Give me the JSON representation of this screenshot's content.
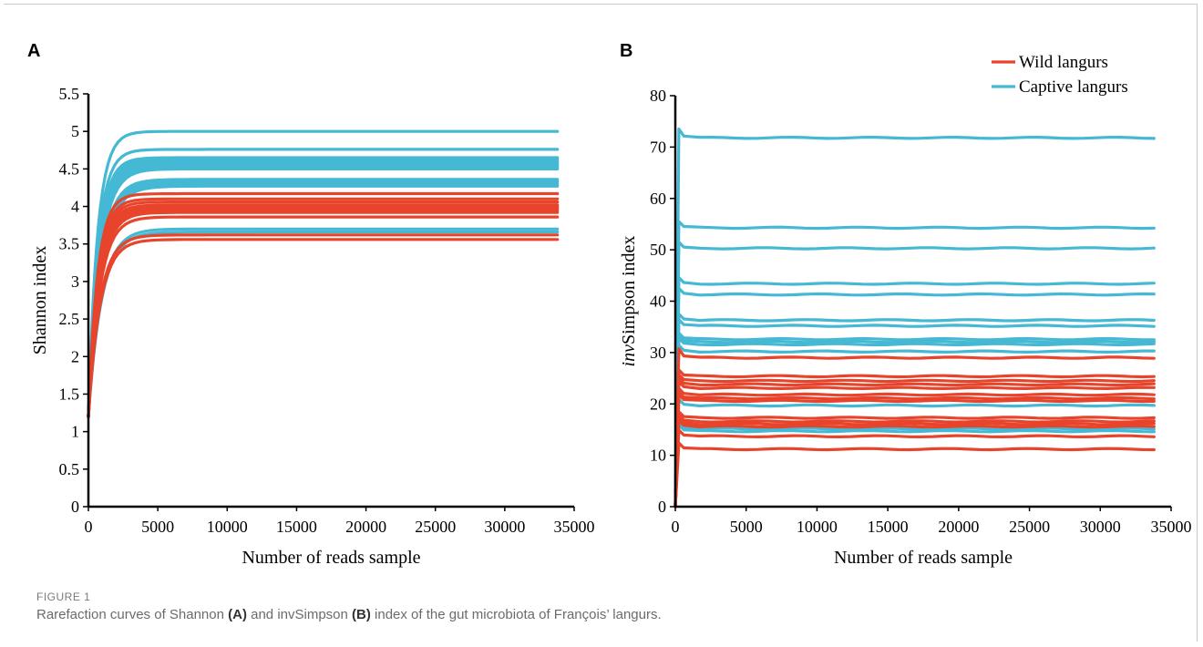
{
  "figure": {
    "label": "FIGURE 1",
    "caption_parts": [
      "Rarefaction curves of Shannon ",
      "(A)",
      " and invSimpson ",
      "(B)",
      " index of the gut microbiota of François’ langurs."
    ]
  },
  "colors": {
    "wild": "#e8442c",
    "captive": "#45b8d4",
    "axis": "#000000"
  },
  "chart_data": [
    {
      "panel": "A",
      "type": "line",
      "xlabel": "Number of reads sample",
      "ylabel": "Shannon index",
      "xlim": [
        0,
        35000
      ],
      "ylim": [
        0,
        5.5
      ],
      "x_ticks": [
        "0",
        "5000",
        "10000",
        "15000",
        "20000",
        "25000",
        "30000",
        "35000"
      ],
      "y_ticks": [
        "0",
        "0.5",
        "1",
        "1.5",
        "2",
        "2.5",
        "3",
        "3.5",
        "4",
        "4.5",
        "5",
        "5.5"
      ],
      "x_end": 33800,
      "series_plateaus": {
        "captive": [
          5.0,
          4.76,
          4.65,
          4.62,
          4.6,
          4.58,
          4.56,
          4.54,
          4.52,
          4.5,
          4.36,
          4.33,
          4.3,
          4.27,
          3.7,
          3.66
        ],
        "wild": [
          4.17,
          4.1,
          4.06,
          4.02,
          4.0,
          3.98,
          3.95,
          3.92,
          3.86,
          3.62,
          3.56
        ]
      },
      "grid": false
    },
    {
      "panel": "B",
      "type": "line",
      "xlabel": "Number of reads sample",
      "ylabel": "invSimpson index",
      "xlim": [
        0,
        35000
      ],
      "ylim": [
        0,
        80
      ],
      "x_ticks": [
        "0",
        "5000",
        "10000",
        "15000",
        "20000",
        "25000",
        "30000",
        "35000"
      ],
      "y_ticks": [
        "0",
        "10",
        "20",
        "30",
        "40",
        "50",
        "60",
        "70",
        "80"
      ],
      "x_end": 33800,
      "series_plateaus": {
        "captive": [
          71.8,
          54.3,
          50.3,
          43.4,
          41.3,
          36.3,
          35.2,
          32.6,
          32.1,
          31.6,
          30.2,
          19.7,
          15.2,
          14.7
        ],
        "wild": [
          29.0,
          25.4,
          24.5,
          23.8,
          23.1,
          21.8,
          21.1,
          20.6,
          17.3,
          16.6,
          16.1,
          15.6,
          13.7,
          11.2
        ]
      },
      "legend": {
        "entries": [
          "Wild langurs",
          "Captive langurs"
        ],
        "placement": "top-right"
      },
      "grid": false
    }
  ]
}
